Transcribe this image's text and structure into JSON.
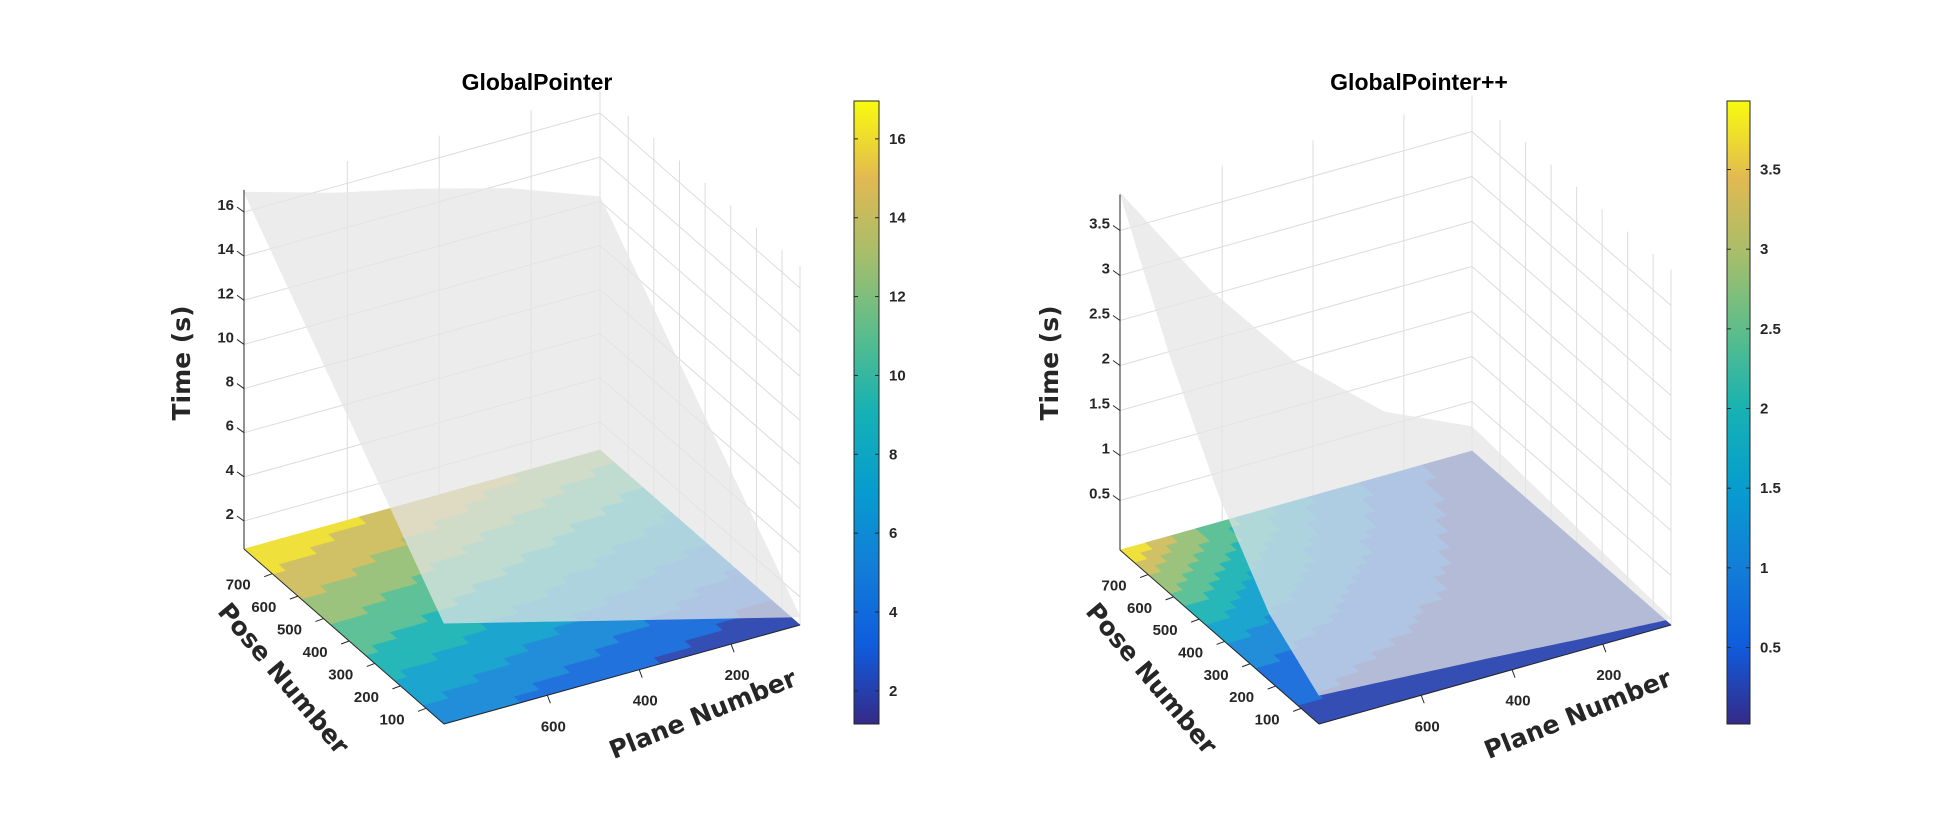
{
  "chart_data": [
    {
      "type": "surface",
      "title": "GlobalPointer",
      "xlabel": "Plane Number",
      "ylabel": "Pose Number",
      "zlabel": "Time (s)",
      "xlim": [
        50,
        825
      ],
      "ylim": [
        30,
        810
      ],
      "zlim": [
        0.73,
        17
      ],
      "xticks": [
        "200",
        "400",
        "600"
      ],
      "yticks": [
        "100",
        "200",
        "300",
        "400",
        "500",
        "600",
        "700"
      ],
      "zticks": [
        "2",
        "4",
        "6",
        "8",
        "10",
        "12",
        "14",
        "16"
      ],
      "colorbar": {
        "clim": [
          1.16,
          16.96
        ],
        "ticks": [
          "2",
          "4",
          "6",
          "8",
          "10",
          "12",
          "14",
          "16"
        ]
      },
      "grid": true,
      "x": [
        50,
        244,
        438,
        631,
        825
      ],
      "y": [
        30,
        225,
        420,
        615,
        810
      ],
      "z": [
        [
          1.1,
          2.15,
          3.2,
          4.25,
          5.3
        ],
        [
          3.88,
          4.96,
          6.04,
          7.12,
          8.2
        ],
        [
          6.65,
          7.76,
          8.88,
          9.99,
          11.1
        ],
        [
          9.43,
          10.57,
          11.71,
          12.86,
          14.0
        ],
        [
          12.2,
          13.7,
          14.8,
          15.73,
          16.9
        ]
      ]
    },
    {
      "type": "surface",
      "title": "GlobalPointer++",
      "xlabel": "Plane Number",
      "ylabel": "Pose Number",
      "zlabel": "Time (s)",
      "xlim": [
        50,
        825
      ],
      "ylim": [
        30,
        810
      ],
      "zlim": [
        -0.05,
        3.9
      ],
      "xticks": [
        "200",
        "400",
        "600"
      ],
      "yticks": [
        "100",
        "200",
        "300",
        "400",
        "500",
        "600",
        "700"
      ],
      "zticks": [
        "0.5",
        "1",
        "1.5",
        "2",
        "2.5",
        "3",
        "3.5"
      ],
      "colorbar": {
        "clim": [
          0.02,
          3.93
        ],
        "ticks": [
          "0.5",
          "1",
          "1.5",
          "2",
          "2.5",
          "3",
          "3.5"
        ]
      },
      "grid": true,
      "x": [
        50,
        244,
        438,
        631,
        825
      ],
      "y": [
        30,
        225,
        420,
        615,
        810
      ],
      "z": [
        [
          0.02,
          0.08,
          0.15,
          0.21,
          0.27
        ],
        [
          0.07,
          0.17,
          0.32,
          0.49,
          0.7
        ],
        [
          0.12,
          0.31,
          0.62,
          1.03,
          1.51
        ],
        [
          0.17,
          0.47,
          1.01,
          1.73,
          2.6
        ],
        [
          0.22,
          0.66,
          1.48,
          2.58,
          3.92
        ]
      ]
    }
  ],
  "colors": {
    "surface": "#e6e6e6",
    "gridline": "#dcdcdc",
    "axis": "#262626",
    "parula": [
      "#352a87",
      "#0f5cdd",
      "#127dd8",
      "#079ccf",
      "#15b1b4",
      "#59bd8c",
      "#a5be6b",
      "#e1b952",
      "#f9fb0e"
    ]
  }
}
